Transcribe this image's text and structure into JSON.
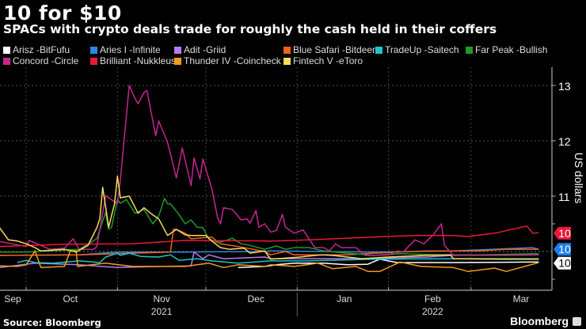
{
  "header": {
    "title": "10 for $10",
    "subtitle": "SPACs with crypto deals trade for roughly the cash held in their coffers"
  },
  "footer": {
    "source": "Source: Bloomberg",
    "brand": "Bloomberg"
  },
  "chart_data": {
    "type": "line",
    "title": "10 for $10",
    "subtitle": "SPACs with crypto deals trade for roughly the cash held in their coffers",
    "xlabel": "",
    "ylabel": "US dollars",
    "x_unit": "days since 2021-10-01",
    "xlim": [
      -9,
      178
    ],
    "ylim": [
      9.29,
      13.33
    ],
    "yticks": [
      11,
      12,
      13
    ],
    "grid": true,
    "legend_position": "top",
    "month_ticks": [
      {
        "label": "Sep",
        "day": -15
      },
      {
        "label": "Oct",
        "day": 15
      },
      {
        "label": "Nov",
        "day": 46
      },
      {
        "label": "Dec",
        "day": 78
      },
      {
        "label": "Jan",
        "day": 108
      },
      {
        "label": "Feb",
        "day": 138
      },
      {
        "label": "Mar",
        "day": 168
      }
    ],
    "month_boundaries": [
      0,
      31,
      61,
      92,
      123,
      151
    ],
    "years": [
      {
        "label": "2021",
        "day": 46
      },
      {
        "label": "2022",
        "day": 138
      }
    ],
    "year_boundary": 92,
    "end_labels": [
      {
        "text": "10",
        "value": 10.33,
        "color": "#e8193c",
        "text_color": "#ffffff"
      },
      {
        "text": "10",
        "value": 10.04,
        "color": "#1f7fe5",
        "text_color": "#ffffff"
      },
      {
        "text": "10",
        "value": 9.79,
        "color": "#ffffff",
        "text_color": "#000000"
      }
    ],
    "series": [
      {
        "name": "Arisz -BitFufu",
        "color": "#ffffff",
        "points": [
          [
            72,
            9.71
          ],
          [
            81,
            9.73
          ],
          [
            85,
            9.76
          ],
          [
            91,
            9.79
          ],
          [
            101,
            9.79
          ],
          [
            109,
            9.76
          ],
          [
            116,
            9.77
          ],
          [
            120,
            9.86
          ],
          [
            126,
            9.8
          ],
          [
            145,
            9.8
          ],
          [
            174,
            9.81
          ]
        ]
      },
      {
        "name": "Aries I -Infinite",
        "color": "#2f86e8",
        "points": [
          [
            -9,
            9.93
          ],
          [
            18,
            9.94
          ],
          [
            31,
            9.99
          ],
          [
            54,
            9.99
          ],
          [
            81,
            10.0
          ],
          [
            83,
            10.01
          ],
          [
            118,
            9.99
          ],
          [
            145,
            10.01
          ],
          [
            172,
            10.07
          ],
          [
            174,
            10.04
          ]
        ]
      },
      {
        "name": "Adit -Griid",
        "color": "#b77cf0",
        "points": [
          [
            -9,
            9.71
          ],
          [
            3,
            9.79
          ],
          [
            18,
            9.76
          ],
          [
            31,
            9.71
          ],
          [
            45,
            9.73
          ],
          [
            56,
            9.74
          ],
          [
            57,
            9.99
          ],
          [
            60,
            9.87
          ],
          [
            62,
            9.94
          ],
          [
            67,
            9.87
          ],
          [
            81,
            9.9
          ],
          [
            83,
            9.87
          ],
          [
            96,
            9.87
          ],
          [
            114,
            9.87
          ],
          [
            136,
            9.9
          ],
          [
            145,
            9.93
          ],
          [
            174,
            9.94
          ]
        ]
      },
      {
        "name": "Blue Safari -Bitdeer",
        "color": "#f2621c",
        "points": [
          [
            -9,
            9.93
          ],
          [
            18,
            9.94
          ],
          [
            49,
            9.99
          ],
          [
            50,
            10.4
          ],
          [
            51,
            10.4
          ],
          [
            54,
            10.33
          ],
          [
            56,
            10.23
          ],
          [
            63,
            10.26
          ],
          [
            66,
            10.14
          ],
          [
            72,
            10.09
          ],
          [
            81,
            10.0
          ],
          [
            83,
            9.94
          ],
          [
            88,
            10.0
          ],
          [
            91,
            9.94
          ],
          [
            109,
            9.94
          ],
          [
            118,
            9.97
          ],
          [
            136,
            10.01
          ],
          [
            154,
            10.01
          ],
          [
            163,
            10.04
          ],
          [
            174,
            10.04
          ]
        ]
      },
      {
        "name": "TradeUp -Saitech",
        "color": "#1cc7c7",
        "points": [
          [
            -3,
            9.8
          ],
          [
            0,
            9.84
          ],
          [
            3,
            9.8
          ],
          [
            9,
            9.79
          ],
          [
            18,
            9.83
          ],
          [
            25,
            9.8
          ],
          [
            27,
            9.9
          ],
          [
            31,
            9.97
          ],
          [
            32,
            9.93
          ],
          [
            35,
            9.97
          ],
          [
            39,
            9.91
          ],
          [
            45,
            9.9
          ],
          [
            49,
            9.94
          ],
          [
            52,
            9.84
          ],
          [
            58,
            9.87
          ],
          [
            63,
            9.83
          ],
          [
            72,
            9.79
          ],
          [
            83,
            9.83
          ],
          [
            96,
            9.83
          ],
          [
            118,
            9.86
          ],
          [
            145,
            9.87
          ],
          [
            174,
            9.87
          ]
        ]
      },
      {
        "name": "Far Peak -Bullish",
        "color": "#1f9a2c",
        "points": [
          [
            -9,
            9.99
          ],
          [
            0,
            9.99
          ],
          [
            18,
            10.04
          ],
          [
            24,
            10.23
          ],
          [
            27,
            10.71
          ],
          [
            28,
            10.4
          ],
          [
            29,
            10.44
          ],
          [
            31,
            10.94
          ],
          [
            32,
            10.87
          ],
          [
            34,
            10.94
          ],
          [
            37,
            10.69
          ],
          [
            40,
            10.76
          ],
          [
            43,
            10.5
          ],
          [
            45,
            10.64
          ],
          [
            47,
            10.96
          ],
          [
            48,
            10.86
          ],
          [
            49,
            10.86
          ],
          [
            52,
            10.66
          ],
          [
            54,
            10.5
          ],
          [
            56,
            10.57
          ],
          [
            58,
            10.44
          ],
          [
            60,
            10.43
          ],
          [
            62,
            10.23
          ],
          [
            65,
            10.16
          ],
          [
            68,
            10.2
          ],
          [
            70,
            10.24
          ],
          [
            73,
            10.14
          ],
          [
            76,
            10.11
          ],
          [
            81,
            10.04
          ],
          [
            85,
            10.1
          ],
          [
            88,
            10.04
          ],
          [
            91,
            10.07
          ],
          [
            96,
            10.07
          ],
          [
            101,
            10.01
          ],
          [
            109,
            9.97
          ],
          [
            118,
            9.93
          ],
          [
            127,
            9.96
          ],
          [
            141,
            9.94
          ],
          [
            154,
            9.94
          ],
          [
            174,
            9.96
          ]
        ]
      },
      {
        "name": "Concord -Circle",
        "color": "#c4268f",
        "points": [
          [
            -9,
            10.18
          ],
          [
            0,
            10.09
          ],
          [
            1,
            10.2
          ],
          [
            8,
            10.04
          ],
          [
            13,
            10.06
          ],
          [
            16,
            10.23
          ],
          [
            18,
            10.04
          ],
          [
            23,
            10.04
          ],
          [
            24,
            10.09
          ],
          [
            27,
            11.01
          ],
          [
            31,
            10.86
          ],
          [
            32,
            11.29
          ],
          [
            35,
            13.0
          ],
          [
            37,
            12.76
          ],
          [
            38,
            12.67
          ],
          [
            40,
            12.87
          ],
          [
            41,
            12.91
          ],
          [
            44,
            12.09
          ],
          [
            45,
            12.36
          ],
          [
            48,
            11.97
          ],
          [
            51,
            11.33
          ],
          [
            53,
            11.87
          ],
          [
            56,
            11.19
          ],
          [
            57,
            11.69
          ],
          [
            59,
            11.31
          ],
          [
            60,
            11.67
          ],
          [
            63,
            11.14
          ],
          [
            65,
            10.61
          ],
          [
            66,
            10.5
          ],
          [
            67,
            10.79
          ],
          [
            70,
            10.76
          ],
          [
            73,
            10.57
          ],
          [
            75,
            10.59
          ],
          [
            76,
            10.51
          ],
          [
            78,
            10.74
          ],
          [
            79,
            10.44
          ],
          [
            81,
            10.5
          ],
          [
            83,
            10.35
          ],
          [
            85,
            10.38
          ],
          [
            87,
            10.67
          ],
          [
            88,
            10.44
          ],
          [
            91,
            10.33
          ],
          [
            94,
            10.39
          ],
          [
            98,
            10.07
          ],
          [
            101,
            10.07
          ],
          [
            103,
            10.01
          ],
          [
            105,
            10.14
          ],
          [
            107,
            10.07
          ],
          [
            112,
            10.07
          ],
          [
            115,
            9.93
          ],
          [
            118,
            9.93
          ],
          [
            123,
            9.94
          ],
          [
            126,
            10.01
          ],
          [
            128,
            9.99
          ],
          [
            132,
            10.21
          ],
          [
            135,
            10.14
          ],
          [
            138,
            10.29
          ],
          [
            141,
            10.5
          ],
          [
            142,
            10.11
          ],
          [
            145,
            9.93
          ],
          [
            154,
            9.93
          ],
          [
            163,
            9.93
          ],
          [
            174,
            9.94
          ]
        ]
      },
      {
        "name": "Brilliant -Nukkleus",
        "color": "#e8193c",
        "points": [
          [
            -9,
            10.09
          ],
          [
            13,
            10.13
          ],
          [
            36,
            10.14
          ],
          [
            54,
            10.2
          ],
          [
            83,
            10.19
          ],
          [
            91,
            10.2
          ],
          [
            118,
            10.26
          ],
          [
            132,
            10.29
          ],
          [
            145,
            10.29
          ],
          [
            150,
            10.27
          ],
          [
            160,
            10.34
          ],
          [
            170,
            10.46
          ],
          [
            172,
            10.33
          ],
          [
            174,
            10.34
          ]
        ]
      },
      {
        "name": "Thunder IV -Coincheck",
        "color": "#f39a1e",
        "points": [
          [
            -9,
            9.74
          ],
          [
            -3,
            9.73
          ],
          [
            0,
            9.76
          ],
          [
            3,
            10.01
          ],
          [
            5,
            9.71
          ],
          [
            13,
            9.73
          ],
          [
            15,
            10.01
          ],
          [
            17,
            10.01
          ],
          [
            17.5,
            9.73
          ],
          [
            27,
            9.79
          ],
          [
            36,
            9.73
          ],
          [
            54,
            9.73
          ],
          [
            62,
            9.79
          ],
          [
            67,
            9.71
          ],
          [
            72,
            9.76
          ],
          [
            81,
            9.73
          ],
          [
            83,
            9.76
          ],
          [
            91,
            9.73
          ],
          [
            99,
            9.79
          ],
          [
            104,
            9.69
          ],
          [
            112,
            9.73
          ],
          [
            116,
            9.64
          ],
          [
            120,
            9.64
          ],
          [
            127,
            9.81
          ],
          [
            134,
            9.73
          ],
          [
            145,
            9.71
          ],
          [
            150,
            9.64
          ],
          [
            159,
            9.7
          ],
          [
            163,
            9.64
          ],
          [
            174,
            9.8
          ]
        ]
      },
      {
        "name": "Fintech V -eToro",
        "color": "#f7dc5c",
        "points": [
          [
            -9,
            10.43
          ],
          [
            -6,
            10.21
          ],
          [
            -3,
            10.19
          ],
          [
            0,
            10.14
          ],
          [
            3,
            10.07
          ],
          [
            5,
            10.01
          ],
          [
            13,
            10.04
          ],
          [
            17,
            9.99
          ],
          [
            21,
            10.11
          ],
          [
            24,
            10.43
          ],
          [
            25,
            10.59
          ],
          [
            26,
            11.16
          ],
          [
            28,
            10.44
          ],
          [
            30,
            10.86
          ],
          [
            31,
            11.36
          ],
          [
            32,
            10.97
          ],
          [
            35,
            11.0
          ],
          [
            38,
            10.69
          ],
          [
            40,
            10.79
          ],
          [
            43,
            10.66
          ],
          [
            45,
            10.59
          ],
          [
            48,
            10.29
          ],
          [
            51,
            10.4
          ],
          [
            54,
            10.3
          ],
          [
            56,
            10.29
          ],
          [
            61,
            10.29
          ],
          [
            63,
            10.19
          ],
          [
            66,
            10.07
          ],
          [
            69,
            10.04
          ],
          [
            74,
            10.06
          ],
          [
            76,
            9.97
          ],
          [
            81,
            10.01
          ],
          [
            83,
            9.86
          ],
          [
            93,
            9.9
          ],
          [
            100,
            9.94
          ],
          [
            104,
            9.93
          ],
          [
            114,
            9.87
          ],
          [
            123,
            9.9
          ],
          [
            136,
            9.93
          ],
          [
            144,
            9.94
          ],
          [
            145,
            9.87
          ],
          [
            163,
            9.86
          ],
          [
            174,
            9.86
          ]
        ]
      }
    ]
  }
}
